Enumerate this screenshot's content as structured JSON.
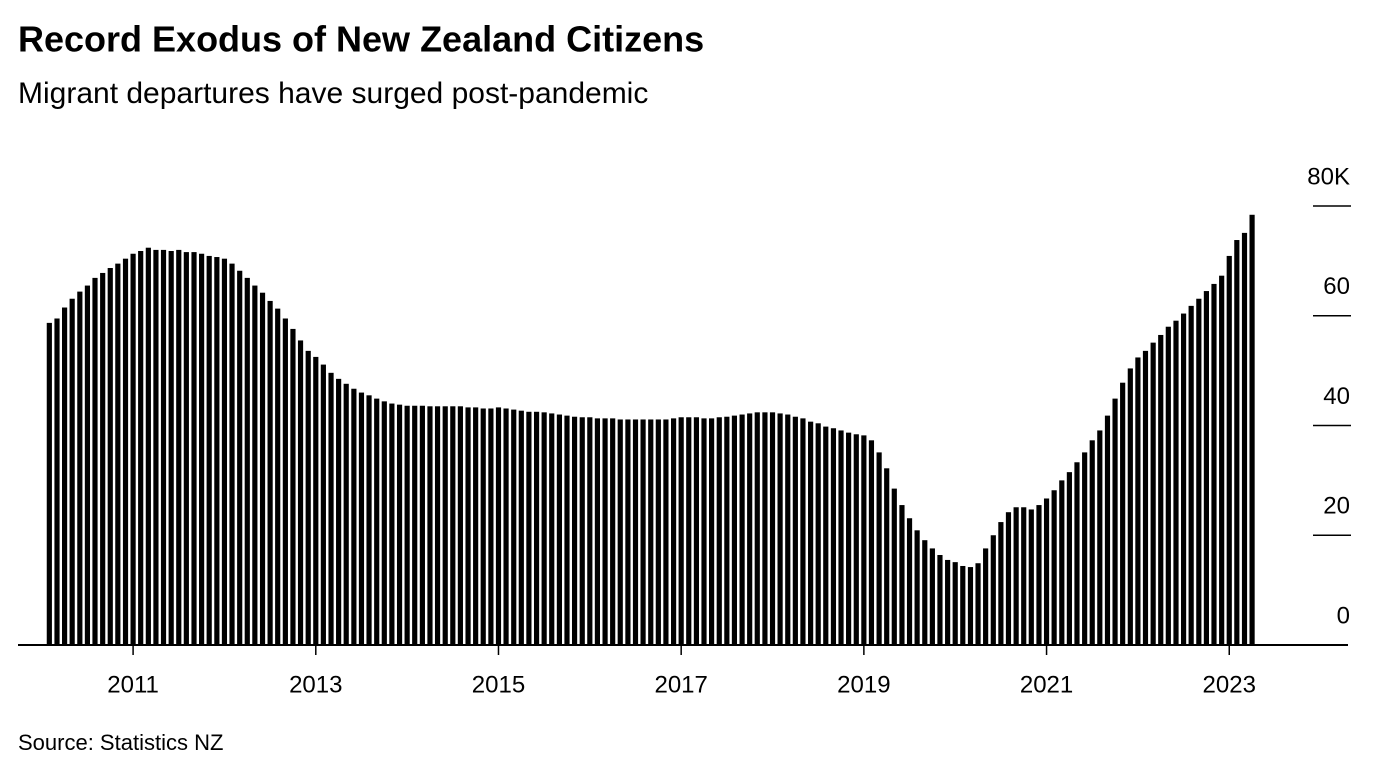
{
  "chart_data": {
    "type": "bar",
    "title": "Record Exodus of New Zealand Citizens",
    "subtitle": "Migrant departures have surged post-pandemic",
    "source": "Source: Statistics NZ",
    "color": "#000000",
    "x": [
      2010.083,
      2010.167,
      2010.25,
      2010.333,
      2010.417,
      2010.5,
      2010.583,
      2010.667,
      2010.75,
      2010.833,
      2010.917,
      2011,
      2011.083,
      2011.167,
      2011.25,
      2011.333,
      2011.417,
      2011.5,
      2011.583,
      2011.667,
      2011.75,
      2011.833,
      2011.917,
      2012,
      2012.083,
      2012.167,
      2012.25,
      2012.333,
      2012.417,
      2012.5,
      2012.583,
      2012.667,
      2012.75,
      2012.833,
      2012.917,
      2013,
      2013.083,
      2013.167,
      2013.25,
      2013.333,
      2013.417,
      2013.5,
      2013.583,
      2013.667,
      2013.75,
      2013.833,
      2013.917,
      2014,
      2014.083,
      2014.167,
      2014.25,
      2014.333,
      2014.417,
      2014.5,
      2014.583,
      2014.667,
      2014.75,
      2014.833,
      2014.917,
      2015,
      2015.083,
      2015.167,
      2015.25,
      2015.333,
      2015.417,
      2015.5,
      2015.583,
      2015.667,
      2015.75,
      2015.833,
      2015.917,
      2016,
      2016.083,
      2016.167,
      2016.25,
      2016.333,
      2016.417,
      2016.5,
      2016.583,
      2016.667,
      2016.75,
      2016.833,
      2016.917,
      2017,
      2017.083,
      2017.167,
      2017.25,
      2017.333,
      2017.417,
      2017.5,
      2017.583,
      2017.667,
      2017.75,
      2017.833,
      2017.917,
      2018,
      2018.083,
      2018.167,
      2018.25,
      2018.333,
      2018.417,
      2018.5,
      2018.583,
      2018.667,
      2018.75,
      2018.833,
      2018.917,
      2019,
      2019.083,
      2019.167,
      2019.25,
      2019.333,
      2019.417,
      2019.5,
      2019.583,
      2019.667,
      2019.75,
      2019.833,
      2019.917,
      2020,
      2020.083,
      2020.167,
      2020.25,
      2020.333,
      2020.417,
      2020.5,
      2020.583,
      2020.667,
      2020.75,
      2020.833,
      2020.917,
      2021,
      2021.083,
      2021.167,
      2021.25,
      2021.333,
      2021.417,
      2021.5,
      2021.583,
      2021.667,
      2021.75,
      2021.833,
      2021.917,
      2022,
      2022.083,
      2022.167,
      2022.25,
      2022.333,
      2022.417,
      2022.5,
      2022.583,
      2022.667,
      2022.75,
      2022.833,
      2022.917,
      2023,
      2023.083,
      2023.167,
      2023.25
    ],
    "values": [
      58.7,
      59.5,
      61.5,
      63.1,
      64.4,
      65.5,
      66.9,
      67.8,
      68.7,
      69.5,
      70.4,
      71.3,
      71.8,
      72.4,
      72.0,
      72.0,
      71.8,
      72.0,
      71.6,
      71.6,
      71.3,
      70.9,
      70.7,
      70.4,
      69.5,
      68.2,
      66.9,
      65.5,
      64.2,
      62.7,
      61.3,
      59.5,
      57.6,
      55.5,
      53.6,
      52.5,
      51.1,
      49.6,
      48.5,
      47.6,
      46.7,
      46.0,
      45.5,
      44.9,
      44.4,
      44.0,
      43.8,
      43.6,
      43.6,
      43.6,
      43.5,
      43.5,
      43.5,
      43.5,
      43.5,
      43.3,
      43.3,
      43.1,
      43.1,
      43.3,
      43.1,
      42.9,
      42.7,
      42.5,
      42.5,
      42.4,
      42.2,
      42.0,
      41.8,
      41.6,
      41.5,
      41.5,
      41.3,
      41.3,
      41.3,
      41.1,
      41.1,
      41.1,
      41.1,
      41.1,
      41.1,
      41.1,
      41.3,
      41.5,
      41.5,
      41.5,
      41.3,
      41.3,
      41.5,
      41.6,
      41.8,
      42.0,
      42.2,
      42.4,
      42.4,
      42.4,
      42.2,
      42.0,
      41.6,
      41.3,
      40.7,
      40.4,
      39.8,
      39.5,
      39.1,
      38.7,
      38.4,
      38.2,
      37.3,
      35.1,
      32.2,
      28.5,
      25.5,
      23.1,
      20.9,
      19.1,
      17.6,
      16.4,
      15.5,
      15.1,
      14.4,
      14.2,
      14.9,
      17.6,
      20.0,
      22.4,
      24.2,
      25.1,
      25.1,
      24.7,
      25.5,
      26.7,
      28.2,
      30.0,
      31.5,
      33.3,
      35.1,
      37.3,
      39.1,
      41.8,
      44.9,
      47.8,
      50.4,
      52.4,
      53.6,
      55.1,
      56.5,
      58.0,
      59.1,
      60.4,
      61.8,
      63.1,
      64.5,
      65.8,
      67.3,
      70.9,
      73.8,
      75.1,
      78.4
    ],
    "xlim": [
      2009.74,
      2024.3
    ],
    "xticks": [
      2011,
      2013,
      2015,
      2017,
      2019,
      2021,
      2023
    ],
    "ylim": [
      0,
      80
    ],
    "yticks": [
      0,
      20,
      40,
      60,
      {
        "value": 80,
        "label": "80K"
      }
    ]
  }
}
